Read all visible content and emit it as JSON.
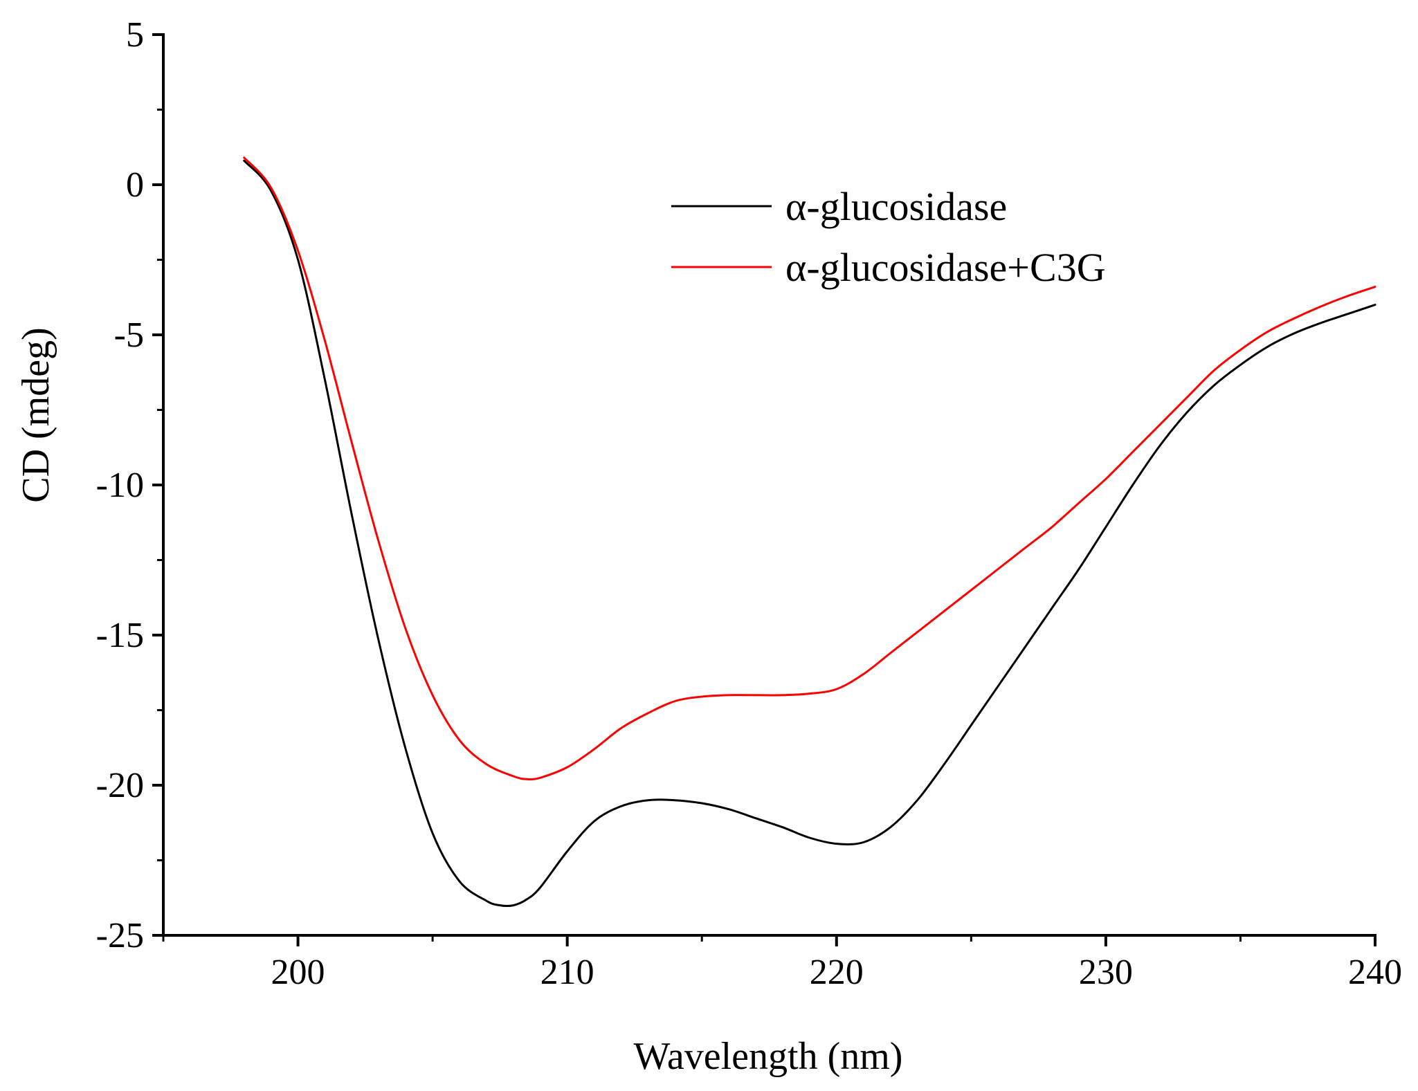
{
  "chart_data": {
    "type": "line",
    "title": "",
    "xlabel": "Wavelength (nm)",
    "ylabel": "CD (mdeg)",
    "xlim": [
      195,
      240
    ],
    "ylim": [
      -25,
      5
    ],
    "grid": false,
    "legend_position": "top-right",
    "x_ticks": [
      200,
      210,
      220,
      230,
      240
    ],
    "x_tick_labels": [
      "200",
      "210",
      "220",
      "230",
      "240"
    ],
    "y_ticks": [
      5,
      0,
      -5,
      -10,
      -15,
      -20,
      -25
    ],
    "y_tick_labels": [
      "5",
      "0",
      "-5",
      "-10",
      "-15",
      "-20",
      "-25"
    ],
    "series": [
      {
        "name": "α-glucosidase",
        "color": "#000000",
        "x": [
          198,
          199,
          200,
          201,
          202,
          203,
          204,
          205,
          206,
          207,
          207.5,
          208,
          208.5,
          209,
          210,
          211,
          212,
          213,
          214,
          215,
          216,
          217,
          218,
          219,
          220,
          221,
          222,
          223,
          224,
          225,
          226,
          227,
          228,
          229,
          230,
          231,
          232,
          233,
          234,
          235,
          236,
          237,
          238,
          239,
          240
        ],
        "y": [
          0.8,
          -0.2,
          -2.5,
          -6.5,
          -11.0,
          -15.2,
          -18.8,
          -21.6,
          -23.2,
          -23.85,
          -24.0,
          -24.0,
          -23.8,
          -23.4,
          -22.2,
          -21.2,
          -20.7,
          -20.5,
          -20.5,
          -20.6,
          -20.8,
          -21.1,
          -21.4,
          -21.75,
          -21.95,
          -21.9,
          -21.4,
          -20.5,
          -19.3,
          -18.0,
          -16.7,
          -15.4,
          -14.1,
          -12.8,
          -11.4,
          -10.0,
          -8.7,
          -7.6,
          -6.7,
          -6.0,
          -5.4,
          -4.95,
          -4.6,
          -4.3,
          -4.0
        ]
      },
      {
        "name": "α-glucosidase+C3G",
        "color": "#ff0000",
        "x": [
          198,
          199,
          200,
          201,
          202,
          203,
          204,
          205,
          206,
          207,
          208,
          208.5,
          209,
          210,
          211,
          212,
          213,
          214,
          215,
          216,
          217,
          218,
          219,
          220,
          221,
          222,
          223,
          224,
          225,
          226,
          227,
          228,
          229,
          230,
          231,
          232,
          233,
          234,
          235,
          236,
          237,
          238,
          239,
          240
        ],
        "y": [
          0.9,
          -0.1,
          -2.2,
          -5.2,
          -8.6,
          -11.9,
          -14.8,
          -17.0,
          -18.5,
          -19.3,
          -19.7,
          -19.8,
          -19.75,
          -19.4,
          -18.8,
          -18.1,
          -17.6,
          -17.2,
          -17.05,
          -17.0,
          -17.0,
          -17.0,
          -16.95,
          -16.8,
          -16.3,
          -15.6,
          -14.9,
          -14.2,
          -13.5,
          -12.8,
          -12.1,
          -11.4,
          -10.6,
          -9.8,
          -8.9,
          -8.0,
          -7.1,
          -6.2,
          -5.5,
          -4.9,
          -4.45,
          -4.05,
          -3.7,
          -3.4
        ]
      }
    ]
  }
}
